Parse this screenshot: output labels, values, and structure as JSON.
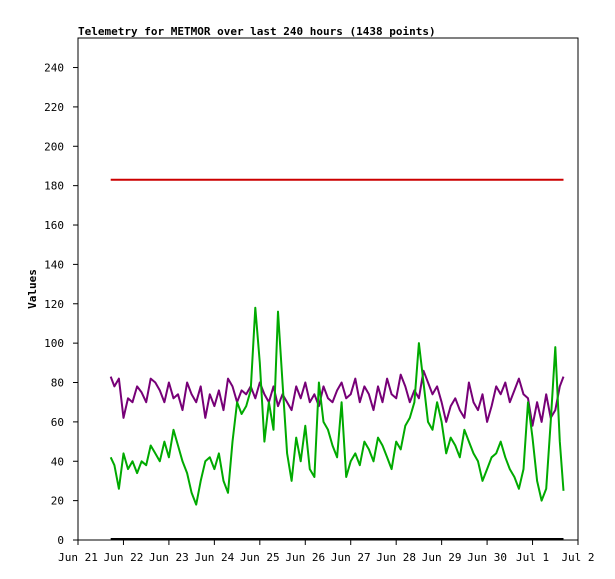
{
  "chart_data": {
    "type": "line",
    "title": "Telemetry for METMOR over last 240 hours (1438 points)",
    "ylabel": "Values",
    "xlabel": "",
    "ylim": [
      0,
      255
    ],
    "yticks": [
      0,
      20,
      40,
      60,
      80,
      100,
      120,
      140,
      160,
      180,
      200,
      220,
      240
    ],
    "xlim_days": [
      0,
      11
    ],
    "xticks": [
      {
        "day": 0,
        "label": "Jun 21"
      },
      {
        "day": 1,
        "label": "Jun 22"
      },
      {
        "day": 2,
        "label": "Jun 23"
      },
      {
        "day": 3,
        "label": "Jun 24"
      },
      {
        "day": 4,
        "label": "Jun 25"
      },
      {
        "day": 5,
        "label": "Jun 26"
      },
      {
        "day": 6,
        "label": "Jun 27"
      },
      {
        "day": 7,
        "label": "Jun 28"
      },
      {
        "day": 8,
        "label": "Jun 29"
      },
      {
        "day": 9,
        "label": "Jun 30"
      },
      {
        "day": 10,
        "label": "Jul 1"
      },
      {
        "day": 11,
        "label": "Jul 2"
      }
    ],
    "grid": false,
    "legend": "none",
    "series": [
      {
        "color": "#cc0000",
        "x": [
          0.72,
          10.68
        ],
        "y": [
          183,
          183
        ]
      },
      {
        "color": "#000000",
        "x": [
          0.72,
          10.68
        ],
        "y": [
          0.5,
          0.5
        ]
      },
      {
        "color": "#770077",
        "x": [
          0.72,
          0.8,
          0.9,
          1.0,
          1.1,
          1.2,
          1.3,
          1.4,
          1.5,
          1.6,
          1.7,
          1.8,
          1.9,
          2.0,
          2.1,
          2.2,
          2.3,
          2.4,
          2.5,
          2.6,
          2.7,
          2.8,
          2.9,
          3.0,
          3.1,
          3.2,
          3.3,
          3.4,
          3.5,
          3.6,
          3.7,
          3.8,
          3.9,
          4.0,
          4.1,
          4.2,
          4.3,
          4.4,
          4.5,
          4.6,
          4.7,
          4.8,
          4.9,
          5.0,
          5.1,
          5.2,
          5.3,
          5.4,
          5.5,
          5.6,
          5.7,
          5.8,
          5.9,
          6.0,
          6.1,
          6.2,
          6.3,
          6.4,
          6.5,
          6.6,
          6.7,
          6.8,
          6.9,
          7.0,
          7.1,
          7.2,
          7.3,
          7.4,
          7.5,
          7.6,
          7.7,
          7.8,
          7.9,
          8.0,
          8.1,
          8.2,
          8.3,
          8.4,
          8.5,
          8.6,
          8.7,
          8.8,
          8.9,
          9.0,
          9.1,
          9.2,
          9.3,
          9.4,
          9.5,
          9.6,
          9.7,
          9.8,
          9.9,
          10.0,
          10.1,
          10.2,
          10.3,
          10.4,
          10.5,
          10.6,
          10.68
        ],
        "y": [
          83,
          78,
          82,
          62,
          72,
          70,
          78,
          75,
          70,
          82,
          80,
          76,
          70,
          80,
          72,
          74,
          66,
          80,
          74,
          70,
          78,
          62,
          74,
          68,
          76,
          66,
          82,
          78,
          70,
          76,
          74,
          78,
          72,
          80,
          74,
          70,
          78,
          68,
          74,
          70,
          66,
          78,
          72,
          80,
          70,
          74,
          68,
          78,
          72,
          70,
          76,
          80,
          72,
          74,
          82,
          70,
          78,
          74,
          66,
          78,
          70,
          82,
          74,
          72,
          84,
          78,
          70,
          76,
          72,
          86,
          80,
          74,
          78,
          70,
          60,
          68,
          72,
          66,
          62,
          80,
          70,
          66,
          74,
          60,
          68,
          78,
          74,
          80,
          70,
          76,
          82,
          74,
          72,
          58,
          70,
          60,
          74,
          62,
          66,
          78,
          83
        ]
      },
      {
        "color": "#00aa00",
        "x": [
          0.72,
          0.8,
          0.9,
          1.0,
          1.1,
          1.2,
          1.3,
          1.4,
          1.5,
          1.6,
          1.7,
          1.8,
          1.9,
          2.0,
          2.1,
          2.2,
          2.3,
          2.4,
          2.5,
          2.6,
          2.7,
          2.8,
          2.9,
          3.0,
          3.1,
          3.2,
          3.3,
          3.4,
          3.5,
          3.6,
          3.7,
          3.8,
          3.9,
          4.0,
          4.1,
          4.2,
          4.3,
          4.4,
          4.5,
          4.6,
          4.7,
          4.8,
          4.9,
          5.0,
          5.1,
          5.2,
          5.3,
          5.4,
          5.5,
          5.6,
          5.7,
          5.8,
          5.9,
          6.0,
          6.1,
          6.2,
          6.3,
          6.4,
          6.5,
          6.6,
          6.7,
          6.8,
          6.9,
          7.0,
          7.1,
          7.2,
          7.3,
          7.4,
          7.5,
          7.6,
          7.7,
          7.8,
          7.9,
          8.0,
          8.1,
          8.2,
          8.3,
          8.4,
          8.5,
          8.6,
          8.7,
          8.8,
          8.9,
          9.0,
          9.1,
          9.2,
          9.3,
          9.4,
          9.5,
          9.6,
          9.7,
          9.8,
          9.9,
          10.0,
          10.1,
          10.2,
          10.3,
          10.4,
          10.5,
          10.6,
          10.68
        ],
        "y": [
          42,
          38,
          26,
          44,
          36,
          40,
          34,
          40,
          38,
          48,
          44,
          40,
          50,
          42,
          56,
          48,
          40,
          34,
          24,
          18,
          30,
          40,
          42,
          36,
          44,
          30,
          24,
          50,
          70,
          64,
          68,
          76,
          118,
          90,
          50,
          70,
          56,
          116,
          80,
          44,
          30,
          52,
          40,
          58,
          36,
          32,
          80,
          60,
          56,
          48,
          42,
          70,
          32,
          40,
          44,
          38,
          50,
          46,
          40,
          52,
          48,
          42,
          36,
          50,
          46,
          58,
          62,
          70,
          100,
          80,
          60,
          56,
          70,
          60,
          44,
          52,
          48,
          42,
          56,
          50,
          44,
          40,
          30,
          36,
          42,
          44,
          50,
          42,
          36,
          32,
          26,
          36,
          70,
          52,
          30,
          20,
          26,
          60,
          98,
          50,
          25
        ]
      }
    ]
  }
}
